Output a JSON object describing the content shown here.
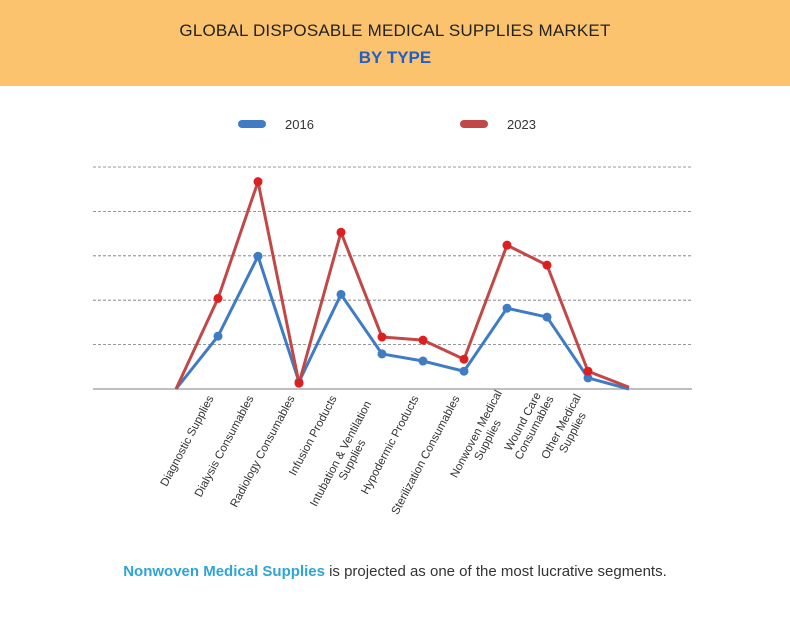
{
  "header": {
    "title": "GLOBAL DISPOSABLE MEDICAL SUPPLIES MARKET",
    "subtitle": "BY TYPE"
  },
  "footer": {
    "highlight": "Nonwoven Medical Supplies",
    "text": " is projected as one of the most lucrative segments."
  },
  "chart_data": {
    "type": "line",
    "title": "GLOBAL DISPOSABLE MEDICAL SUPPLIES MARKET BY TYPE",
    "xlabel": "",
    "ylabel": "",
    "ylim": [
      0,
      5
    ],
    "grid": true,
    "legend": "top",
    "categories": [
      "",
      "Diagnostic Supplies",
      "Dialysis Consumables",
      "Radiology Consumables",
      "Infusion Products",
      "Intubation & Ventilation Supplies",
      "Hypodermic Products",
      "Sterilization Consumables",
      "Nonwoven Medical Supplies",
      "Wound Care Consumables",
      "Other Medical Supplies",
      ""
    ],
    "label_lines": [
      [],
      [
        "Diagnostic Supplies"
      ],
      [
        "Dialysis Consumables"
      ],
      [
        "Radiology Consumables"
      ],
      [
        "Infusion Products"
      ],
      [
        "Intubation & Ventilation",
        "Supplies"
      ],
      [
        "Hypodermic Products"
      ],
      [
        "Sterilization Consumables"
      ],
      [
        "Nonwoven Medical",
        "Supplies"
      ],
      [
        "Wound Care",
        "Consumables"
      ],
      [
        "Other Medical",
        "Supplies"
      ],
      []
    ],
    "series": [
      {
        "name": "2016",
        "color": "#3f7cc4",
        "values": [
          0,
          1.19,
          2.99,
          0.16,
          2.13,
          0.79,
          0.63,
          0.4,
          1.82,
          1.62,
          0.25,
          0
        ]
      },
      {
        "name": "2023",
        "color": "#c24848",
        "point_color": "#dd1f1f",
        "values": [
          0,
          2.04,
          4.67,
          0.13,
          3.53,
          1.17,
          1.1,
          0.67,
          3.24,
          2.79,
          0.4,
          0.04
        ]
      }
    ]
  }
}
